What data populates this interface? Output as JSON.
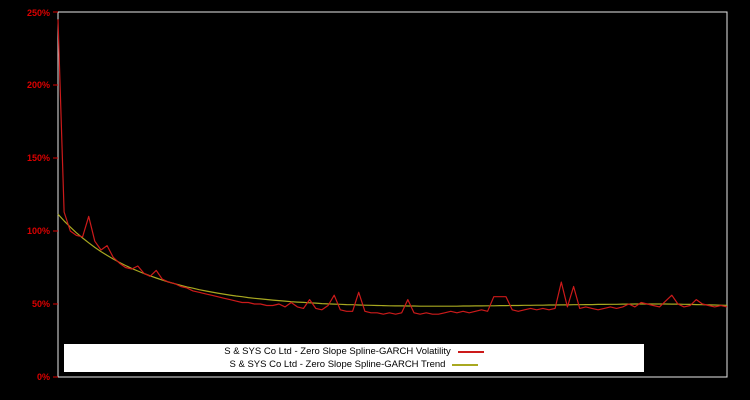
{
  "chart_data": {
    "type": "line",
    "title": "",
    "xlabel": "",
    "ylabel": "",
    "ylim": [
      0,
      250
    ],
    "yticks": [
      "0%",
      "50%",
      "100%",
      "150%",
      "200%",
      "250%"
    ],
    "grid": false,
    "legend_position": "bottom-center",
    "colors": {
      "background": "#000000",
      "axis_labels": "#dd0000",
      "frame": "#e8e8e8",
      "legend_background": "#ffffff",
      "legend_text": "#000000"
    },
    "series": [
      {
        "name": "S & SYS Co Ltd - Zero Slope Spline-GARCH Volatility",
        "color": "#cc1a1a",
        "values": [
          245,
          113,
          100,
          97,
          96,
          110,
          93,
          87,
          90,
          82,
          78,
          75,
          74,
          76,
          71,
          69,
          73,
          67,
          65,
          64,
          62,
          61,
          59,
          58,
          57,
          56,
          55,
          54,
          53,
          52,
          51,
          51,
          50,
          50,
          49,
          49,
          50,
          48,
          51,
          48,
          47,
          53,
          47,
          46,
          49,
          56,
          46,
          45,
          45,
          58,
          45,
          44,
          44,
          43,
          44,
          43,
          44,
          53,
          44,
          43,
          44,
          43,
          43,
          44,
          45,
          44,
          45,
          44,
          45,
          46,
          45,
          55,
          55,
          55,
          46,
          45,
          46,
          47,
          46,
          47,
          46,
          47,
          65,
          48,
          62,
          47,
          48,
          47,
          46,
          47,
          48,
          47,
          48,
          50,
          48,
          51,
          50,
          49,
          48,
          52,
          56,
          50,
          48,
          49,
          53,
          50,
          49,
          48,
          49,
          48
        ]
      },
      {
        "name": "S & SYS Co Ltd - Zero Slope Spline-GARCH Trend",
        "color": "#a8a820",
        "values": [
          111.5,
          106.9,
          102.7,
          98.8,
          95.2,
          91.9,
          88.8,
          85.9,
          83.3,
          80.8,
          78.5,
          76.4,
          74.4,
          72.6,
          70.9,
          69.3,
          67.8,
          66.4,
          65.1,
          63.9,
          62.8,
          61.7,
          60.8,
          59.8,
          59.0,
          58.2,
          57.5,
          56.8,
          56.1,
          55.5,
          55.0,
          54.4,
          53.9,
          53.5,
          53.1,
          52.7,
          52.3,
          52.0,
          51.6,
          51.3,
          51.1,
          50.8,
          50.6,
          50.3,
          50.1,
          49.9,
          49.8,
          49.6,
          49.5,
          49.3,
          49.2,
          49.1,
          49.0,
          48.9,
          48.8,
          48.7,
          48.7,
          48.6,
          48.6,
          48.5,
          48.5,
          48.5,
          48.5,
          48.5,
          48.5,
          48.5,
          48.6,
          48.6,
          48.7,
          48.7,
          48.8,
          48.8,
          48.9,
          48.9,
          49.0,
          49.0,
          49.1,
          49.1,
          49.2,
          49.2,
          49.3,
          49.3,
          49.4,
          49.4,
          49.5,
          49.5,
          49.6,
          49.6,
          49.7,
          49.7,
          49.8,
          49.8,
          49.9,
          49.9,
          50.0,
          50.0,
          50.0,
          50.0,
          50.0,
          50.0,
          49.9,
          49.9,
          49.8,
          49.7,
          49.6,
          49.5,
          49.4,
          49.3,
          49.2,
          49.1
        ]
      }
    ]
  }
}
